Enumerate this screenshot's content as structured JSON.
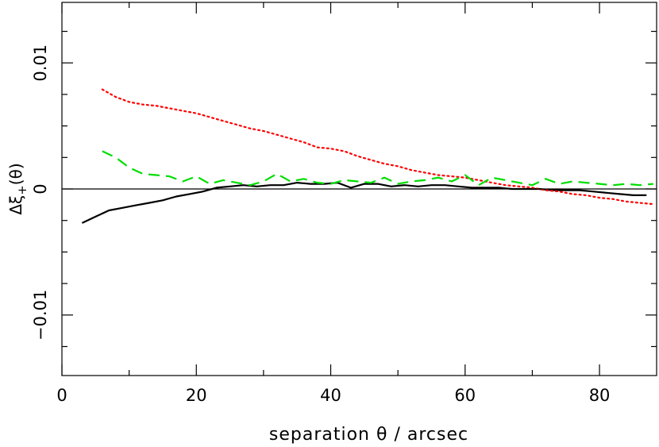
{
  "chart_data": {
    "type": "line",
    "title": "",
    "xlabel": "separation θ / arcsec",
    "ylabel": "Δξ+(θ)",
    "ylabel_parts": {
      "main": "Δξ",
      "sub": "+",
      "arg": "(θ)"
    },
    "xlim": [
      0,
      88.5
    ],
    "ylim": [
      -0.0148,
      0.0148
    ],
    "x_ticks": [
      0,
      20,
      40,
      60,
      80
    ],
    "x_tick_labels": [
      "0",
      "20",
      "40",
      "60",
      "80"
    ],
    "y_ticks": [
      -0.01,
      0,
      0.01
    ],
    "y_tick_labels": [
      "−0.01",
      "0",
      "0.01"
    ],
    "zero_line": true,
    "grid": false,
    "legend": "none",
    "series": [
      {
        "color": "#000000",
        "style": "solid",
        "x": [
          3,
          5,
          7,
          9,
          11,
          13,
          15,
          17,
          19,
          21,
          23,
          25,
          27,
          29,
          31,
          33,
          35,
          37,
          39,
          41,
          43,
          45,
          47,
          49,
          51,
          53,
          55,
          57,
          59,
          61,
          63,
          65,
          67,
          69,
          71,
          73,
          75,
          77,
          79,
          81,
          83,
          85,
          87
        ],
        "y": [
          -0.0027,
          -0.0022,
          -0.0017,
          -0.0015,
          -0.0013,
          -0.0011,
          -0.0009,
          -0.0006,
          -0.0004,
          -0.0002,
          0.0001,
          0.0002,
          0.0003,
          0.0002,
          0.0003,
          0.0003,
          0.0005,
          0.0004,
          0.0004,
          0.0005,
          0.0001,
          0.0004,
          0.0004,
          0.0002,
          0.0003,
          0.0002,
          0.0003,
          0.0003,
          0.0002,
          0.0001,
          0.0001,
          0.0001,
          0.0,
          0.0,
          0.0,
          -0.0001,
          -0.0001,
          -0.0001,
          -0.0002,
          -0.0003,
          -0.0004,
          -0.0005,
          -0.0005
        ]
      },
      {
        "color": "#ff0000",
        "style": "dotted",
        "x": [
          6,
          8,
          10,
          12,
          14,
          16,
          18,
          20,
          22,
          24,
          26,
          28,
          30,
          32,
          34,
          36,
          38,
          40,
          42,
          44,
          46,
          48,
          50,
          52,
          54,
          56,
          58,
          60,
          62,
          64,
          66,
          68,
          70,
          72,
          74,
          76,
          78,
          80,
          82,
          84,
          86,
          88
        ],
        "y": [
          0.0079,
          0.0073,
          0.0069,
          0.0067,
          0.0066,
          0.0064,
          0.0062,
          0.006,
          0.0057,
          0.0054,
          0.0051,
          0.0048,
          0.0046,
          0.0043,
          0.004,
          0.0037,
          0.0033,
          0.0032,
          0.003,
          0.0026,
          0.0023,
          0.002,
          0.0018,
          0.0015,
          0.0013,
          0.0011,
          0.001,
          0.0009,
          0.0007,
          0.0005,
          0.0003,
          0.0002,
          0.0001,
          -0.0001,
          -0.0002,
          -0.0004,
          -0.0005,
          -0.0007,
          -0.0008,
          -0.001,
          -0.0011,
          -0.0012
        ]
      },
      {
        "color": "#00dd00",
        "style": "dashed",
        "x": [
          6,
          8,
          10,
          12,
          14,
          16,
          18,
          20,
          22,
          24,
          26,
          28,
          30,
          32,
          34,
          36,
          38,
          40,
          42,
          44,
          46,
          48,
          50,
          52,
          54,
          56,
          58,
          60,
          62,
          64,
          66,
          68,
          70,
          72,
          74,
          76,
          78,
          80,
          82,
          84,
          86,
          88
        ],
        "y": [
          0.003,
          0.0025,
          0.0017,
          0.0012,
          0.0011,
          0.001,
          0.0006,
          0.001,
          0.0004,
          0.0007,
          0.0005,
          0.0003,
          0.0006,
          0.0012,
          0.0006,
          0.0008,
          0.0005,
          0.0004,
          0.0007,
          0.0006,
          0.0005,
          0.0009,
          0.0004,
          0.0006,
          0.0007,
          0.0009,
          0.0006,
          0.0011,
          0.0003,
          0.0009,
          0.0007,
          0.0005,
          0.0003,
          0.0008,
          0.0004,
          0.0006,
          0.0005,
          0.0004,
          0.0003,
          0.0004,
          0.0003,
          0.0004
        ]
      }
    ]
  }
}
